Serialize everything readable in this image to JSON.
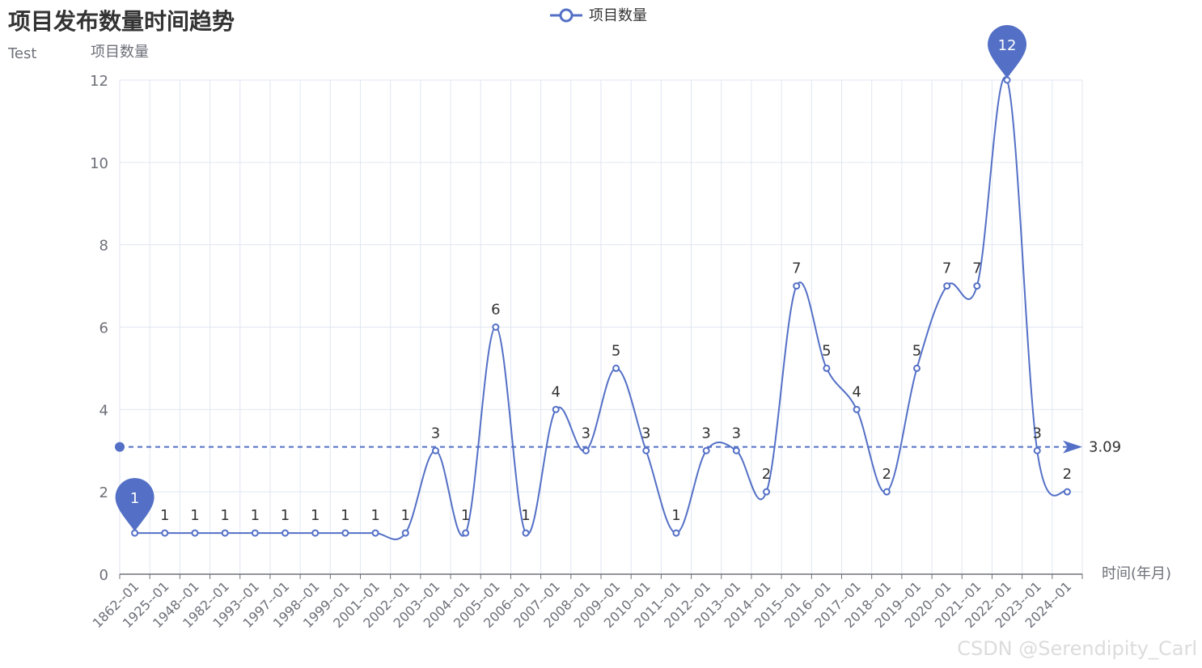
{
  "chart_data": {
    "type": "line",
    "title": "项目发布数量时间趋势",
    "subtitle": "Test",
    "xlabel": "时间(年月)",
    "ylabel": "项目数量",
    "ylim": [
      0,
      12
    ],
    "yticks": [
      0,
      2,
      4,
      6,
      8,
      10,
      12
    ],
    "grid": true,
    "legend_position": "top-center",
    "smooth": true,
    "categories": [
      "1862--01",
      "1925--01",
      "1948--01",
      "1982--01",
      "1993--01",
      "1997--01",
      "1998--01",
      "1999--01",
      "2001--01",
      "2002--01",
      "2003--01",
      "2004--01",
      "2005--01",
      "2006--01",
      "2007--01",
      "2008--01",
      "2009--01",
      "2010--01",
      "2011--01",
      "2012--01",
      "2013--01",
      "2014--01",
      "2015--01",
      "2016--01",
      "2017--01",
      "2018--01",
      "2019--01",
      "2020--01",
      "2021--01",
      "2022--01",
      "2023--01",
      "2024--01"
    ],
    "series": [
      {
        "name": "项目数量",
        "values": [
          1,
          1,
          1,
          1,
          1,
          1,
          1,
          1,
          1,
          1,
          3,
          1,
          6,
          1,
          4,
          3,
          5,
          3,
          1,
          3,
          3,
          2,
          7,
          5,
          4,
          2,
          5,
          7,
          7,
          12,
          3,
          2
        ]
      }
    ],
    "mark_points": [
      {
        "type": "min",
        "label": "1",
        "category": "1862--01",
        "value": 1
      },
      {
        "type": "max",
        "label": "12",
        "category": "2022--01",
        "value": 12
      }
    ],
    "mark_line": {
      "type": "average",
      "value": 3.09,
      "label": "3.09"
    },
    "colors": {
      "series": "#5470c6",
      "grid": "#e0e6f1",
      "axis": "#6e7079"
    }
  },
  "watermark": "CSDN @Serendipity_Carl"
}
